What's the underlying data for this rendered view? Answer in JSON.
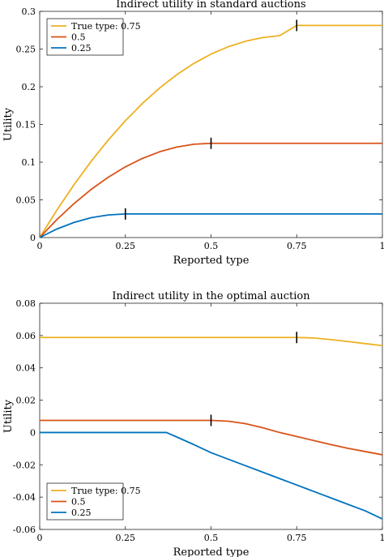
{
  "chart_data": [
    {
      "type": "line",
      "title": "Indirect utility in standard auctions",
      "xlabel": "Reported type",
      "ylabel": "Utility",
      "xlim": [
        0,
        1
      ],
      "ylim": [
        0,
        0.3
      ],
      "xticks": [
        0,
        0.25,
        0.5,
        0.75,
        1
      ],
      "xtick_labels": [
        "0",
        "0.25",
        "0.5",
        "0.75",
        "1"
      ],
      "yticks": [
        0,
        0.05,
        0.1,
        0.15,
        0.2,
        0.25,
        0.3
      ],
      "ytick_labels": [
        "0",
        "0.05",
        "0.1",
        "0.15",
        "0.2",
        "0.25",
        "0.3"
      ],
      "grid": false,
      "legend": {
        "placement": "top-left"
      },
      "series": [
        {
          "name": "True type: 0.75",
          "color": "#EDB120",
          "true_type": 0.75,
          "x": [
            0,
            0.05,
            0.1,
            0.15,
            0.2,
            0.25,
            0.3,
            0.35,
            0.4,
            0.45,
            0.5,
            0.55,
            0.6,
            0.65,
            0.7,
            0.75,
            0.8,
            0.85,
            0.9,
            0.95,
            1
          ],
          "y": [
            0,
            0.0363,
            0.07,
            0.101,
            0.1293,
            0.155,
            0.178,
            0.1983,
            0.216,
            0.231,
            0.2433,
            0.253,
            0.2603,
            0.2652,
            0.2677,
            0.2813,
            0.2813,
            0.2813,
            0.2813,
            0.2813,
            0.2813
          ]
        },
        {
          "name": "0.5",
          "color": "#D95319",
          "true_type": 0.5,
          "x": [
            0,
            0.05,
            0.1,
            0.15,
            0.2,
            0.25,
            0.3,
            0.35,
            0.4,
            0.45,
            0.5,
            0.55,
            0.6,
            0.65,
            0.7,
            0.75,
            0.8,
            0.85,
            0.9,
            0.95,
            1
          ],
          "y": [
            0,
            0.0238,
            0.045,
            0.0638,
            0.08,
            0.0938,
            0.105,
            0.1138,
            0.12,
            0.1238,
            0.125,
            0.125,
            0.125,
            0.125,
            0.125,
            0.125,
            0.125,
            0.125,
            0.125,
            0.125,
            0.125
          ]
        },
        {
          "name": "0.25",
          "color": "#0072BD",
          "true_type": 0.25,
          "x": [
            0,
            0.05,
            0.1,
            0.15,
            0.2,
            0.25,
            0.3,
            0.4,
            0.5,
            0.6,
            0.7,
            0.8,
            0.9,
            1
          ],
          "y": [
            0,
            0.0113,
            0.02,
            0.0263,
            0.03,
            0.0313,
            0.0313,
            0.0313,
            0.0313,
            0.0313,
            0.0313,
            0.0313,
            0.0313,
            0.0313
          ]
        }
      ]
    },
    {
      "type": "line",
      "title": "Indirect utility in the optimal auction",
      "xlabel": "Reported type",
      "ylabel": "Utility",
      "xlim": [
        0,
        1
      ],
      "ylim": [
        -0.06,
        0.08
      ],
      "xticks": [
        0,
        0.25,
        0.5,
        0.75,
        1
      ],
      "xtick_labels": [
        "0",
        "0.25",
        "0.5",
        "0.75",
        "1"
      ],
      "yticks": [
        -0.06,
        -0.04,
        -0.02,
        0,
        0.02,
        0.04,
        0.06,
        0.08
      ],
      "ytick_labels": [
        "-0.06",
        "-0.04",
        "-0.02",
        "0",
        "0.02",
        "0.04",
        "0.06",
        "0.08"
      ],
      "grid": false,
      "legend": {
        "placement": "bottom-left"
      },
      "series": [
        {
          "name": "True type: 0.75",
          "color": "#EDB120",
          "true_type": 0.75,
          "x": [
            0,
            0.1,
            0.2,
            0.3,
            0.4,
            0.5,
            0.6,
            0.7,
            0.75,
            0.8,
            0.85,
            0.9,
            0.95,
            1
          ],
          "y": [
            0.0588,
            0.0588,
            0.0588,
            0.0588,
            0.0588,
            0.0588,
            0.0588,
            0.0588,
            0.0588,
            0.0585,
            0.0575,
            0.0563,
            0.055,
            0.0538
          ]
        },
        {
          "name": "0.5",
          "color": "#D95319",
          "true_type": 0.5,
          "x": [
            0,
            0.1,
            0.2,
            0.3,
            0.4,
            0.5,
            0.55,
            0.6,
            0.65,
            0.7,
            0.75,
            0.8,
            0.85,
            0.9,
            0.95,
            1
          ],
          "y": [
            0.0075,
            0.0075,
            0.0075,
            0.0075,
            0.0075,
            0.0075,
            0.007,
            0.0055,
            0.003,
            0,
            -0.0025,
            -0.005,
            -0.0075,
            -0.0098,
            -0.0118,
            -0.0138
          ]
        },
        {
          "name": "0.25",
          "color": "#0072BD",
          "true_type": 0.25,
          "x": [
            0,
            0.1,
            0.2,
            0.3,
            0.37,
            0.4,
            0.45,
            0.5,
            0.55,
            0.6,
            0.65,
            0.7,
            0.75,
            0.8,
            0.85,
            0.9,
            0.95,
            1
          ],
          "y": [
            0,
            0,
            0,
            0,
            0,
            -0.0028,
            -0.0075,
            -0.0125,
            -0.0165,
            -0.0205,
            -0.0245,
            -0.0285,
            -0.0325,
            -0.0365,
            -0.0405,
            -0.0445,
            -0.0485,
            -0.0535
          ]
        }
      ]
    }
  ]
}
